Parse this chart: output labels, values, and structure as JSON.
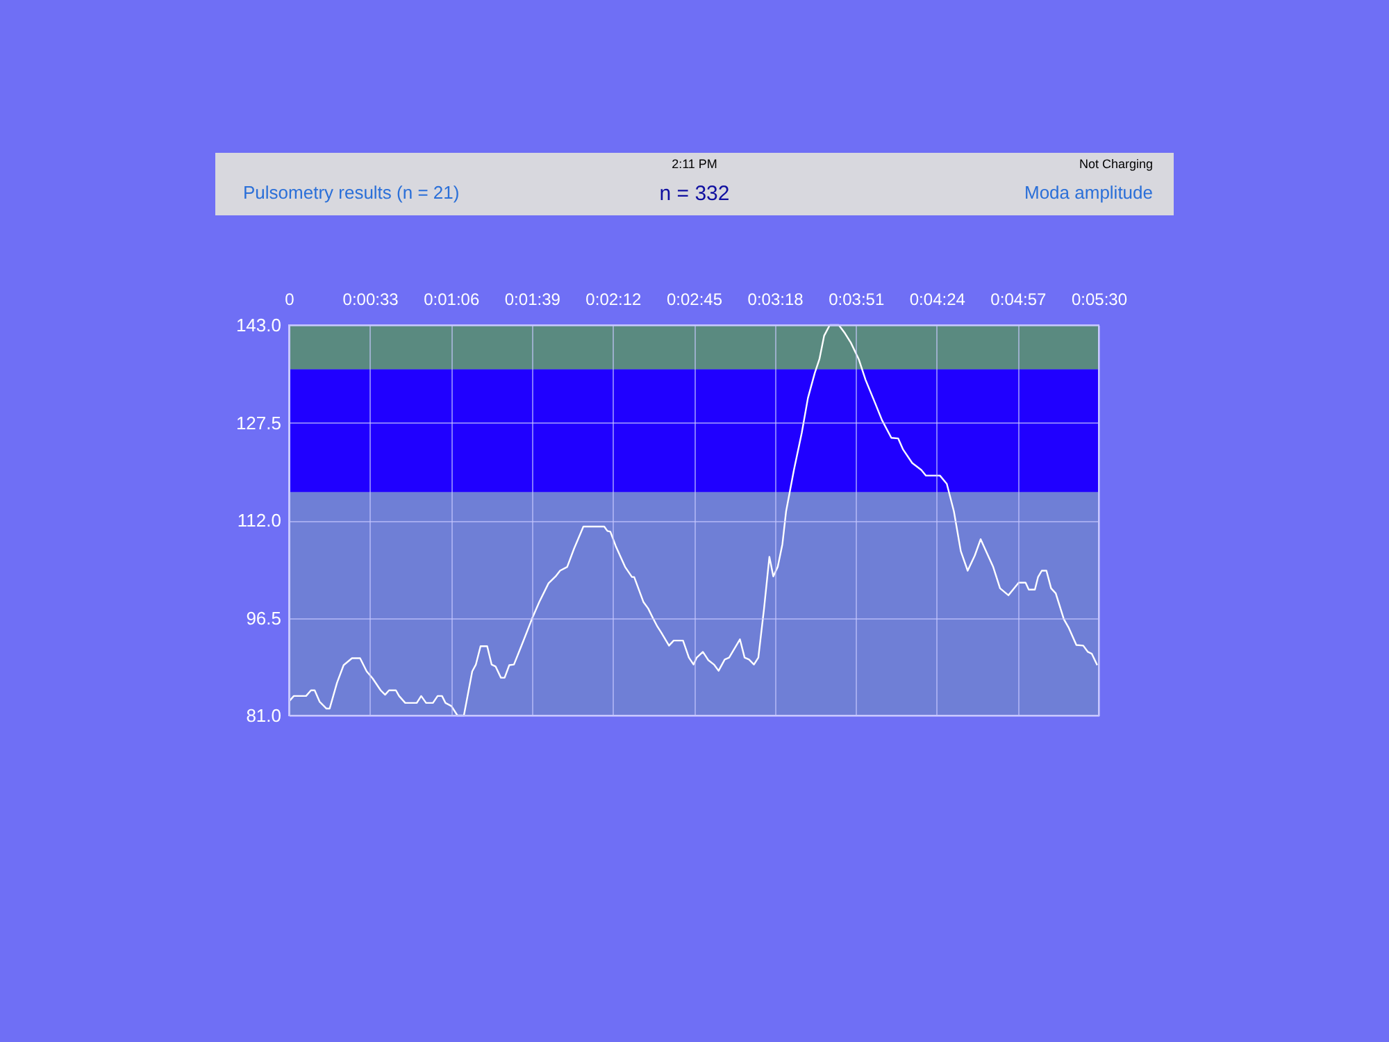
{
  "chart_data": {
    "type": "line",
    "title": "n = 332",
    "annotations": [
      "2:11 PM",
      "Not Charging",
      "Pulsometry results (n = 21)",
      "Moda amplitude"
    ],
    "xlim": [
      0,
      330
    ],
    "ylim": [
      81,
      143
    ],
    "xticks": [
      {
        "value": 0,
        "label": "0"
      },
      {
        "value": 33,
        "label": "0:00:33"
      },
      {
        "value": 66,
        "label": "0:01:06"
      },
      {
        "value": 99,
        "label": "0:01:39"
      },
      {
        "value": 132,
        "label": "0:02:12"
      },
      {
        "value": 165,
        "label": "0:02:45"
      },
      {
        "value": 198,
        "label": "0:03:18"
      },
      {
        "value": 231,
        "label": "0:03:51"
      },
      {
        "value": 264,
        "label": "0:04:24"
      },
      {
        "value": 297,
        "label": "0:04:57"
      },
      {
        "value": 330,
        "label": "0:05:30"
      }
    ],
    "yticks": [
      {
        "value": 81,
        "label": "81.0"
      },
      {
        "value": 96.5,
        "label": "96.5"
      },
      {
        "value": 112,
        "label": "112.0"
      },
      {
        "value": 127.5,
        "label": "127.5"
      },
      {
        "value": 143,
        "label": "143.0"
      }
    ],
    "grid": true,
    "marker": "none",
    "line_style": "solid",
    "bands": [
      {
        "axis": "y",
        "from": 81,
        "to": 116.5,
        "color": "#6f7fd6"
      },
      {
        "axis": "y",
        "from": 116.5,
        "to": 136,
        "color": "#2000ff"
      },
      {
        "axis": "y",
        "from": 136,
        "to": 143,
        "color": "#5a8a80"
      }
    ],
    "series": [
      {
        "color": "#ffffff",
        "x": [
          0,
          2,
          7,
          9,
          10.5,
          12.5,
          15.3,
          16.6,
          19.6,
          22.3,
          25.7,
          29,
          31.7,
          34.1,
          37.4,
          39.2,
          40.8,
          43.6,
          44.9,
          47.4,
          52.1,
          53.9,
          55.9,
          58.7,
          60.6,
          62.4,
          63.8,
          66.2,
          68.7,
          71.3,
          74.7,
          76.2,
          78.1,
          80.8,
          82.6,
          84.2,
          86.4,
          87.9,
          89.8,
          91.7,
          95.5,
          99.2,
          102,
          105.8,
          108.7,
          110.5,
          113.4,
          116.2,
          120,
          128.5,
          129.8,
          131,
          133.2,
          137,
          139.8,
          140.7,
          144.5,
          146.4,
          148.3,
          150.2,
          151.7,
          154.9,
          156.8,
          160.6,
          163,
          164.9,
          166.2,
          168.7,
          170.9,
          173.2,
          175.1,
          177.6,
          179.4,
          183.8,
          185.7,
          187.5,
          189.5,
          191.3,
          193.6,
          195.8,
          197.4,
          199.2,
          201.1,
          202.6,
          205.8,
          209,
          211.5,
          214.3,
          216.2,
          218.1,
          220.4,
          224.1,
          226.6,
          229,
          232.2,
          235,
          238.9,
          241.7,
          245.5,
          248.3,
          250.2,
          254,
          257.7,
          259.6,
          265.3,
          268.1,
          271,
          273.8,
          276.6,
          279.5,
          281.9,
          284.1,
          287,
          289.8,
          293.2,
          295.5,
          297.4,
          300.2,
          301.5,
          304,
          305.3,
          306.8,
          308.7,
          310.6,
          312.5,
          315.8,
          317.7,
          320.9,
          323.7,
          325.6,
          327.2,
          329.4
        ],
        "values": [
          83.2,
          84.1,
          84.1,
          85.0,
          85.0,
          83.2,
          82.1,
          82.1,
          86.2,
          89.0,
          90.1,
          90.1,
          88.0,
          86.9,
          85.0,
          84.3,
          85.0,
          85.0,
          84.1,
          83.0,
          83.0,
          84.1,
          83.0,
          83.0,
          84.1,
          84.1,
          83.0,
          82.5,
          81.0,
          81.0,
          88.0,
          89.1,
          92.0,
          92.0,
          89.1,
          88.8,
          87.0,
          87.0,
          89.0,
          89.1,
          92.8,
          96.5,
          99.0,
          102.0,
          103.1,
          104.0,
          104.6,
          107.5,
          111.0,
          111.0,
          110.3,
          110.2,
          107.9,
          104.6,
          103.0,
          103.0,
          99.0,
          98.0,
          96.5,
          95.1,
          94.2,
          92.1,
          92.9,
          92.9,
          90.2,
          89.1,
          90.2,
          91.1,
          89.8,
          89.1,
          88.1,
          89.9,
          90.2,
          93.1,
          90.2,
          89.9,
          89.1,
          90.2,
          97.9,
          106.2,
          103.1,
          104.6,
          108.2,
          113.4,
          120.0,
          125.9,
          131.4,
          135.4,
          137.6,
          141.3,
          143.0,
          143.0,
          141.7,
          140.2,
          137.6,
          134.3,
          130.6,
          127.9,
          125.1,
          125.0,
          123.3,
          121.1,
          120.0,
          119.1,
          119.1,
          117.8,
          113.4,
          107.1,
          104.0,
          106.4,
          109.0,
          107.1,
          104.6,
          101.2,
          100.1,
          101.2,
          102.1,
          102.1,
          101.0,
          101.0,
          103.0,
          104.0,
          104.0,
          101.2,
          100.4,
          96.3,
          95.0,
          92.2,
          92.1,
          91.1,
          90.8,
          89.0
        ]
      }
    ]
  }
}
